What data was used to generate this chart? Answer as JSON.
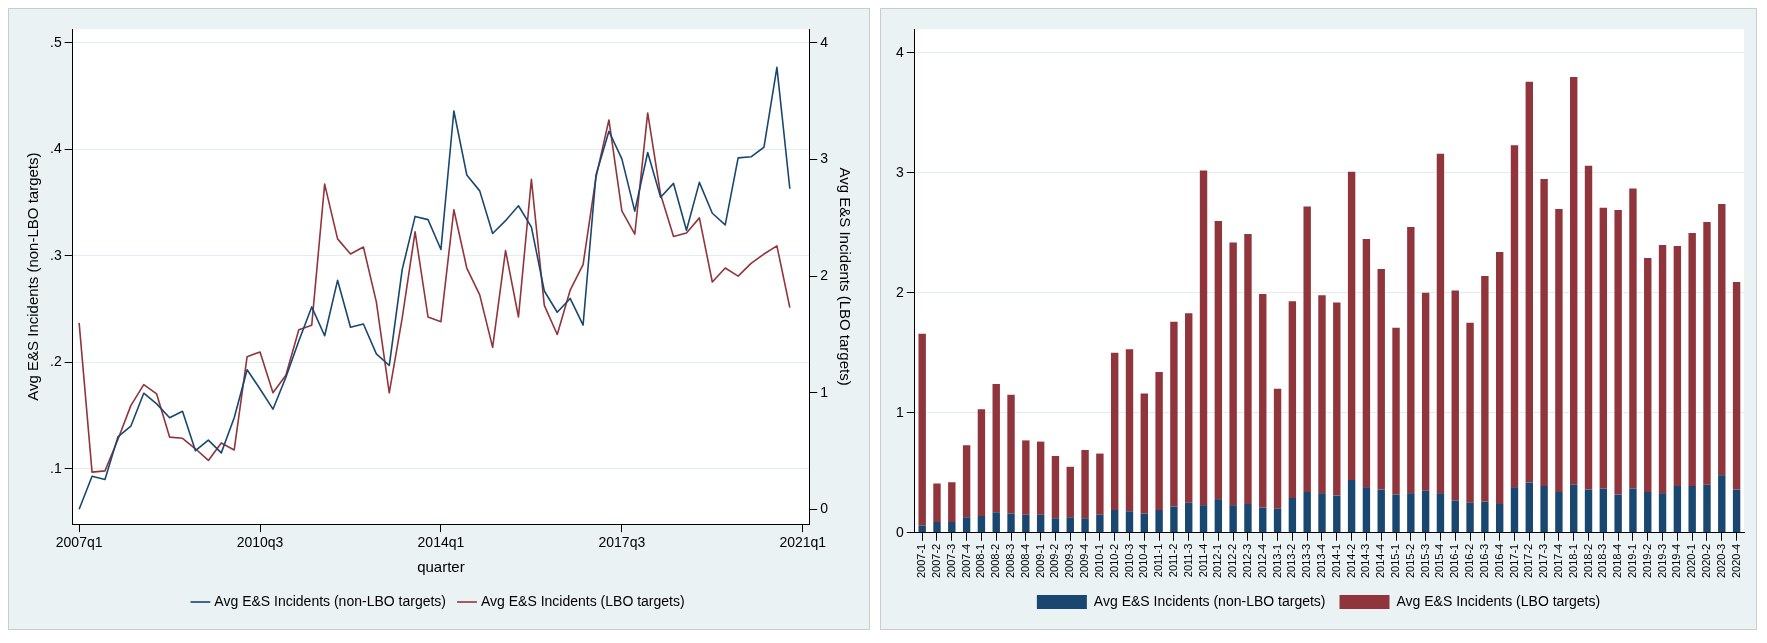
{
  "chart_data": [
    {
      "type": "line",
      "xlabel": "quarter",
      "ylabel": "Avg E&S Incidents (non-LBO targets)",
      "y2label": "Avg E&S Incidents (LBO targets)",
      "categories": [
        "2007q1",
        null,
        null,
        null,
        null,
        null,
        null,
        null,
        null,
        null,
        null,
        null,
        null,
        null,
        "2010q3",
        null,
        null,
        null,
        null,
        null,
        null,
        null,
        null,
        null,
        null,
        null,
        null,
        null,
        "2014q1",
        null,
        null,
        null,
        null,
        null,
        null,
        null,
        null,
        null,
        null,
        null,
        null,
        null,
        "2017q3",
        null,
        null,
        null,
        null,
        null,
        null,
        null,
        null,
        null,
        null,
        null,
        null,
        null,
        "2021q1"
      ],
      "series": [
        {
          "name": "Avg E&S Incidents (non-LBO targets)",
          "color": "#1a476f",
          "values": [
            0.062,
            0.093,
            0.09,
            0.13,
            0.14,
            0.171,
            0.161,
            0.148,
            0.154,
            0.117,
            0.127,
            0.115,
            0.148,
            0.193,
            0.175,
            0.156,
            0.186,
            0.22,
            0.252,
            0.225,
            0.277,
            0.233,
            0.236,
            0.208,
            0.197,
            0.287,
            0.337,
            0.334,
            0.306,
            0.436,
            0.376,
            0.361,
            0.321,
            0.333,
            0.347,
            0.327,
            0.267,
            0.247,
            0.26,
            0.235,
            0.376,
            0.417,
            0.391,
            0.342,
            0.397,
            0.355,
            0.368,
            0.324,
            0.369,
            0.34,
            0.329,
            0.392,
            0.393,
            0.402,
            0.477,
            0.363,
            null
          ]
        },
        {
          "name": "Avg E&S Incidents (LBO targets)",
          "color": "#90353b",
          "axis": "y2",
          "values": [
            1.6,
            0.32,
            0.33,
            0.6,
            0.89,
            1.07,
            0.99,
            0.62,
            0.61,
            0.52,
            0.42,
            0.57,
            0.51,
            1.31,
            1.35,
            1.0,
            1.15,
            1.54,
            1.58,
            2.79,
            2.32,
            2.19,
            2.25,
            1.78,
            1.0,
            1.64,
            2.38,
            1.65,
            1.61,
            2.57,
            2.07,
            1.84,
            1.39,
            2.22,
            1.65,
            2.83,
            1.75,
            1.5,
            1.88,
            2.1,
            2.85,
            3.34,
            2.56,
            2.36,
            3.4,
            2.7,
            2.34,
            2.37,
            2.5,
            1.95,
            2.07,
            2.0,
            2.11,
            2.19,
            2.26,
            1.73,
            null
          ]
        }
      ],
      "ylim": [
        0.048,
        0.513
      ],
      "yticks": [
        {
          "value": 0.1,
          "label": ".1"
        },
        {
          "value": 0.2,
          "label": ".2"
        },
        {
          "value": 0.3,
          "label": ".3"
        },
        {
          "value": 0.4,
          "label": ".4"
        },
        {
          "value": 0.5,
          "label": ".5"
        }
      ],
      "y2lim": [
        -0.127,
        4.12
      ],
      "y2ticks": [
        0,
        1,
        2,
        3,
        4
      ],
      "grid": "y",
      "legend": "bottom",
      "marker": "none"
    },
    {
      "type": "bar",
      "stacked": true,
      "categories": [
        "2007-1",
        "2007-2",
        "2007-3",
        "2007-4",
        "2008-1",
        "2008-2",
        "2008-3",
        "2008-4",
        "2009-1",
        "2009-2",
        "2009-3",
        "2009-4",
        "2010-1",
        "2010-2",
        "2010-3",
        "2010-4",
        "2011-1",
        "2011-2",
        "2011-3",
        "2011-4",
        "2012-1",
        "2012-2",
        "2012-3",
        "2012-4",
        "2013-1",
        "2013-2",
        "2013-3",
        "2013-4",
        "2014-1",
        "2014-2",
        "2014-3",
        "2014-4",
        "2015-1",
        "2015-2",
        "2015-3",
        "2015-4",
        "2016-1",
        "2016-2",
        "2016-3",
        "2016-4",
        "2017-1",
        "2017-2",
        "2017-3",
        "2017-4",
        "2018-1",
        "2018-2",
        "2018-3",
        "2018-4",
        "2019-1",
        "2019-2",
        "2019-3",
        "2019-4",
        "2020-1",
        "2020-2",
        "2020-3",
        "2020-4"
      ],
      "series": [
        {
          "name": "Avg E&S Incidents (non-LBO targets)",
          "color": "#1a476f",
          "values": [
            0.06,
            0.09,
            0.09,
            0.13,
            0.14,
            0.17,
            0.16,
            0.15,
            0.15,
            0.12,
            0.13,
            0.12,
            0.15,
            0.19,
            0.18,
            0.16,
            0.19,
            0.22,
            0.25,
            0.23,
            0.28,
            0.23,
            0.24,
            0.21,
            0.2,
            0.29,
            0.34,
            0.33,
            0.31,
            0.44,
            0.38,
            0.36,
            0.32,
            0.33,
            0.35,
            0.33,
            0.27,
            0.25,
            0.26,
            0.24,
            0.38,
            0.42,
            0.39,
            0.34,
            0.4,
            0.36,
            0.37,
            0.32,
            0.37,
            0.34,
            0.33,
            0.39,
            0.39,
            0.4,
            0.48,
            0.36
          ]
        },
        {
          "name": "Avg E&S Incidents (LBO targets)",
          "color": "#90353b",
          "values": [
            1.6,
            0.32,
            0.33,
            0.6,
            0.89,
            1.07,
            0.99,
            0.62,
            0.61,
            0.52,
            0.42,
            0.57,
            0.51,
            1.31,
            1.35,
            1.0,
            1.15,
            1.54,
            1.58,
            2.79,
            2.32,
            2.19,
            2.25,
            1.78,
            1.0,
            1.64,
            2.38,
            1.65,
            1.61,
            2.57,
            2.07,
            1.84,
            1.39,
            2.22,
            1.65,
            2.83,
            1.75,
            1.5,
            1.88,
            2.1,
            2.85,
            3.34,
            2.56,
            2.36,
            3.4,
            2.7,
            2.34,
            2.37,
            2.5,
            1.95,
            2.07,
            2.0,
            2.11,
            2.19,
            2.26,
            1.73
          ]
        }
      ],
      "ylim": [
        0,
        4.2
      ],
      "yticks": [
        0,
        1,
        2,
        3,
        4
      ],
      "grid": "y",
      "legend": "bottom"
    }
  ]
}
